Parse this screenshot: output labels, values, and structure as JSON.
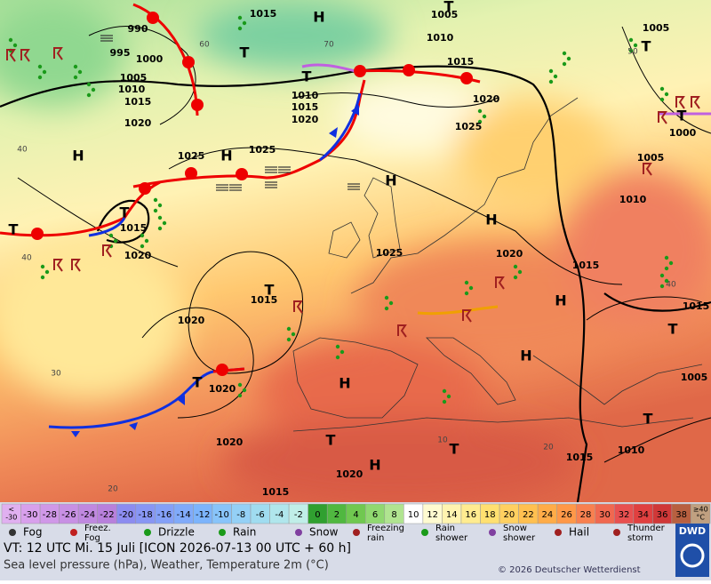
{
  "map": {
    "isobar_labels": [
      990,
      995,
      1000,
      1005,
      1010,
      1015,
      1020,
      1015,
      1005,
      1010,
      1015,
      1010,
      1015,
      1020,
      1020,
      1025,
      1025,
      1025,
      1005,
      1000,
      1005,
      1010,
      1015,
      1020,
      1025,
      1020,
      1015,
      1015,
      1015,
      1020,
      1020,
      1005,
      1020,
      1020,
      1015,
      1010,
      1015
    ],
    "temperature_labels": [
      60,
      70,
      50,
      40,
      40,
      40,
      30,
      20,
      20,
      10
    ],
    "high_labels": [
      "H",
      "H",
      "H",
      "H",
      "H",
      "H",
      "H",
      "H",
      "H"
    ],
    "low_labels": [
      "T",
      "T",
      "T",
      "T",
      "T",
      "T",
      "T",
      "T",
      "T",
      "T",
      "T",
      "T",
      "T"
    ]
  },
  "color_scale": {
    "labels": [
      [
        "<",
        "-30"
      ],
      "-30",
      "-28",
      "-26",
      "-24",
      "-22",
      "-20",
      "-18",
      "-16",
      "-14",
      "-12",
      "-10",
      "-8",
      "-6",
      "-4",
      "-2",
      "0",
      "2",
      "4",
      "6",
      "8",
      "10",
      "12",
      "14",
      "16",
      "18",
      "20",
      "22",
      "24",
      "26",
      "28",
      "30",
      "32",
      "34",
      "36",
      "38",
      [
        "≥40",
        "°C"
      ]
    ],
    "colors": [
      "#e0b0f0",
      "#d8a0ec",
      "#d098e8",
      "#c890e4",
      "#c088e0",
      "#b880dc",
      "#8c8cf0",
      "#8896f4",
      "#84a0f8",
      "#80aafa",
      "#7cb4fc",
      "#88c4fa",
      "#94d0f6",
      "#a0dcf0",
      "#b0e6ec",
      "#c0eee8",
      "#30a030",
      "#50b840",
      "#70c850",
      "#90d870",
      "#b0e490",
      "#ffffff",
      "#fffbd0",
      "#fff4b0",
      "#ffec90",
      "#ffe070",
      "#ffd060",
      "#ffc050",
      "#ffac48",
      "#ff9848",
      "#f88050",
      "#f06850",
      "#e85050",
      "#e04040",
      "#d03838",
      "#b86040",
      "#c0a080"
    ]
  },
  "weather_legend": [
    [
      "Fog"
    ],
    [
      "Freez.",
      "Fog"
    ],
    [
      "Drizzle"
    ],
    [
      "Rain"
    ],
    [
      "Snow"
    ],
    [
      "Freezing",
      "rain"
    ],
    [
      "Rain",
      "shower"
    ],
    [
      "Snow",
      "shower"
    ],
    [
      "Hail"
    ],
    [
      "Thunder",
      "storm"
    ]
  ],
  "footer": {
    "valid_time": "VT: 12 UTC Mi.  15 Juli [ICON 2026-07-13  00 UTC + 60 h]",
    "description": "Sea level pressure (hPa), Weather, Temperature 2m (°C)",
    "copyright": "© 2026 Deutscher Wetterdienst",
    "logo": "DWD"
  }
}
